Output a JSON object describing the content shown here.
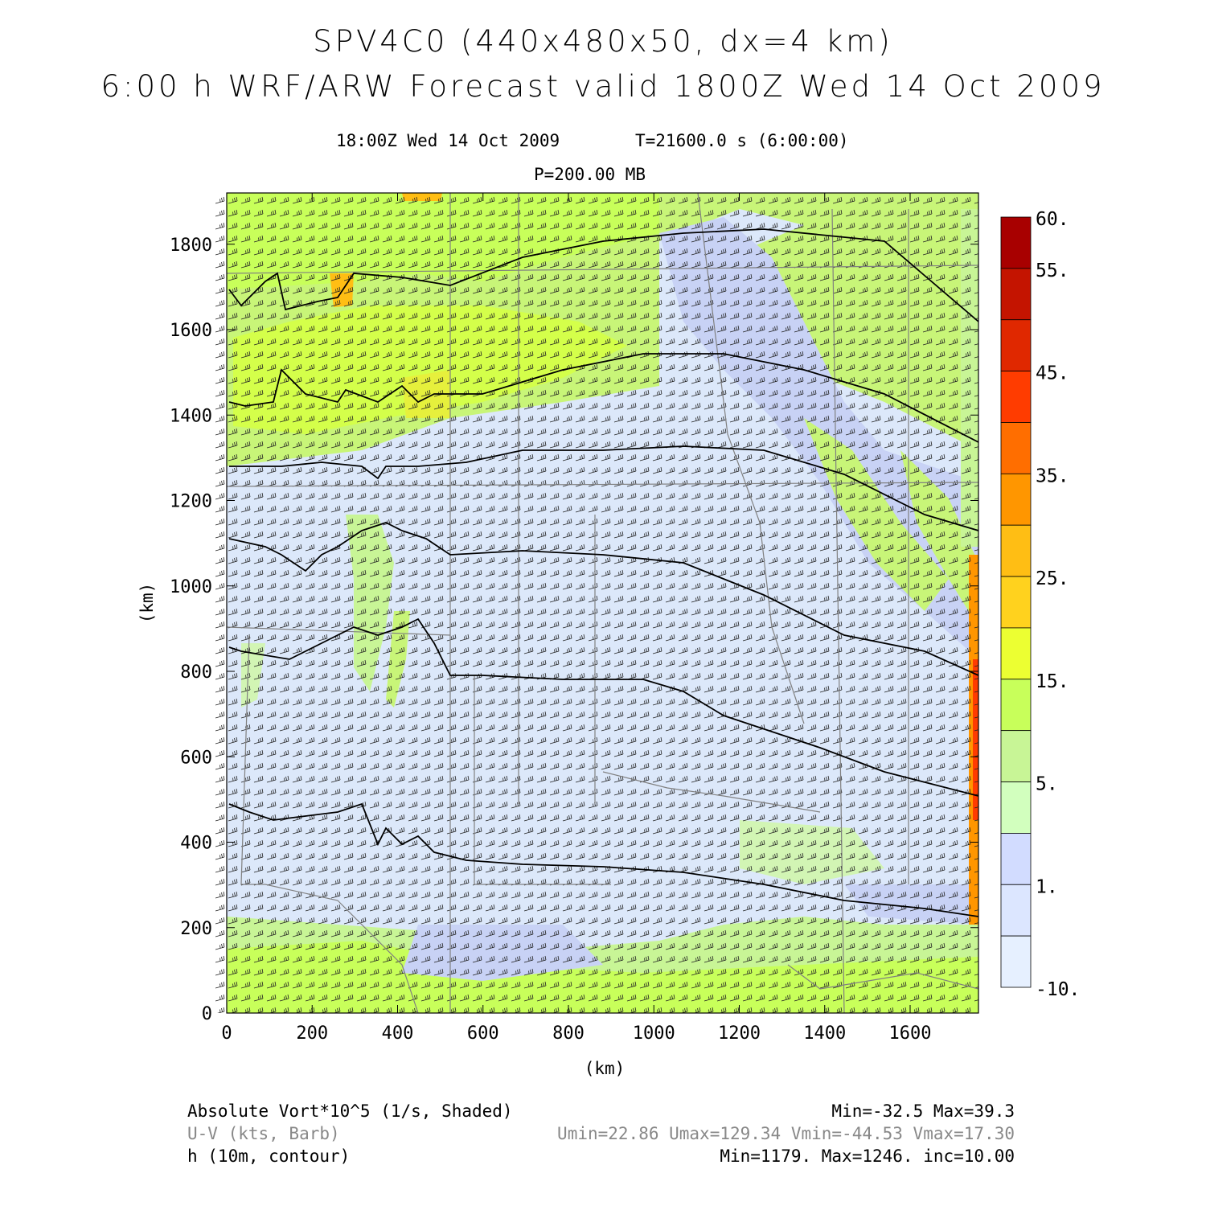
{
  "header": {
    "title_line1": "SPV4C0 (440x480x50, dx=4 km)",
    "title_line2": "6:00 h WRF/ARW Forecast valid 1800Z Wed 14 Oct 2009",
    "valid_time": "18:00Z Wed 14 Oct 2009",
    "time_step": "T=21600.0 s (6:00:00)",
    "level": "P=200.00 MB"
  },
  "axes": {
    "x_label": "(km)",
    "y_label": "(km)",
    "x_ticks": [
      "0",
      "200",
      "400",
      "600",
      "800",
      "1000",
      "1200",
      "1400",
      "1600"
    ],
    "y_ticks": [
      "0",
      "200",
      "400",
      "600",
      "800",
      "1000",
      "1200",
      "1400",
      "1600",
      "1800"
    ],
    "x_range": [
      0,
      1760
    ],
    "y_range": [
      0,
      1920
    ]
  },
  "colorbar": {
    "labels": [
      "60.",
      "55.",
      "45.",
      "35.",
      "25.",
      "15.",
      "5.",
      "1.",
      "-10."
    ],
    "colors_top_to_bottom": [
      "#a80000",
      "#c41400",
      "#e02800",
      "#ff3c00",
      "#ff6e00",
      "#ff9600",
      "#ffbe14",
      "#ffd21e",
      "#ecff32",
      "#c8ff5a",
      "#c8f596",
      "#d2ffbe",
      "#d2dcff",
      "#dce6ff",
      "#e6f0ff"
    ]
  },
  "fields": {
    "shaded": "Absolute Vort*10^5 (1/s, Shaded)",
    "shaded_stats": "Min=-32.5 Max=39.3",
    "barbs": "U-V (kts, Barb)",
    "barb_stats": "Umin=22.86 Umax=129.34 Vmin=-44.53 Vmax=17.30",
    "contour": "h (10m, contour)",
    "contour_stats": "Min=1179. Max=1246. inc=10.00"
  },
  "colors": {
    "background": "#ffffff",
    "contour": "#000000",
    "state_borders": "#808080",
    "barbs": "#202020",
    "footer_secondary": "#888888"
  }
}
